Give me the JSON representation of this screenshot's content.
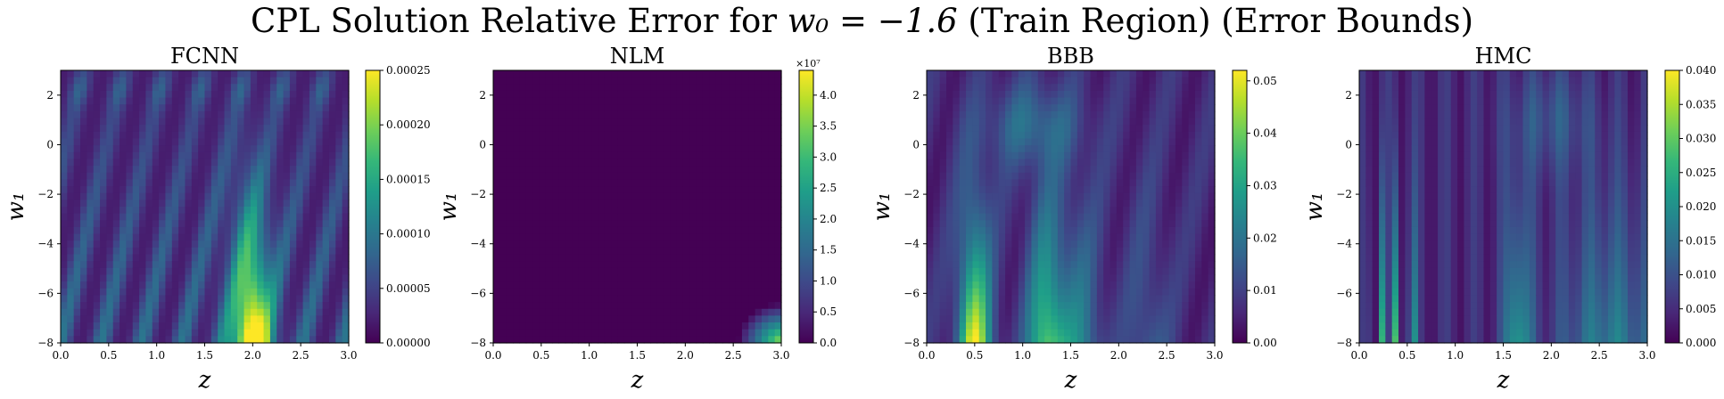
{
  "figure": {
    "title_prefix": "CPL Solution Relative Error for ",
    "title_math": "w₀ = −1.6",
    "title_suffix": " (Train Region) (Error Bounds)"
  },
  "chart_data": [
    {
      "type": "heatmap",
      "title": "FCNN",
      "xlabel": "z",
      "ylabel": "w₁",
      "xlim": [
        0.0,
        3.0
      ],
      "ylim": [
        -8,
        3
      ],
      "x_ticks": [
        "0.0",
        "0.5",
        "1.0",
        "1.5",
        "2.0",
        "2.5",
        "3.0"
      ],
      "y_ticks": [
        "2",
        "0",
        "−2",
        "−4",
        "−6",
        "−8"
      ],
      "colorbar": {
        "range": [
          0.0,
          0.00025
        ],
        "ticks": [
          "0.00000",
          "0.00005",
          "0.00010",
          "0.00015",
          "0.00020",
          "0.00025"
        ],
        "exponent": ""
      },
      "colormap": "viridis"
    },
    {
      "type": "heatmap",
      "title": "NLM",
      "xlabel": "z",
      "ylabel": "w₁",
      "xlim": [
        0.0,
        3.0
      ],
      "ylim": [
        -8,
        3
      ],
      "x_ticks": [
        "0.0",
        "0.5",
        "1.0",
        "1.5",
        "2.0",
        "2.5",
        "3.0"
      ],
      "y_ticks": [
        "2",
        "0",
        "−2",
        "−4",
        "−6",
        "−8"
      ],
      "colorbar": {
        "range": [
          0.0,
          4.4
        ],
        "ticks": [
          "0.0",
          "0.5",
          "1.0",
          "1.5",
          "2.0",
          "2.5",
          "3.0",
          "3.5",
          "4.0"
        ],
        "exponent": "×10⁷"
      },
      "colormap": "viridis"
    },
    {
      "type": "heatmap",
      "title": "BBB",
      "xlabel": "z",
      "ylabel": "w₁",
      "xlim": [
        0.0,
        3.0
      ],
      "ylim": [
        -8,
        3
      ],
      "x_ticks": [
        "0.0",
        "0.5",
        "1.0",
        "1.5",
        "2.0",
        "2.5",
        "3.0"
      ],
      "y_ticks": [
        "2",
        "0",
        "−2",
        "−4",
        "−6",
        "−8"
      ],
      "colorbar": {
        "range": [
          0.0,
          0.052
        ],
        "ticks": [
          "0.00",
          "0.01",
          "0.02",
          "0.03",
          "0.04",
          "0.05"
        ],
        "exponent": ""
      },
      "colormap": "viridis"
    },
    {
      "type": "heatmap",
      "title": "HMC",
      "xlabel": "z",
      "ylabel": "w₁",
      "xlim": [
        0.0,
        3.0
      ],
      "ylim": [
        -8,
        3
      ],
      "x_ticks": [
        "0.0",
        "0.5",
        "1.0",
        "1.5",
        "2.0",
        "2.5",
        "3.0"
      ],
      "y_ticks": [
        "2",
        "0",
        "−2",
        "−4",
        "−6",
        "−8"
      ],
      "colorbar": {
        "range": [
          0.0,
          0.04
        ],
        "ticks": [
          "0.000",
          "0.005",
          "0.010",
          "0.015",
          "0.020",
          "0.025",
          "0.030",
          "0.035",
          "0.040"
        ],
        "exponent": ""
      },
      "colormap": "viridis"
    }
  ]
}
